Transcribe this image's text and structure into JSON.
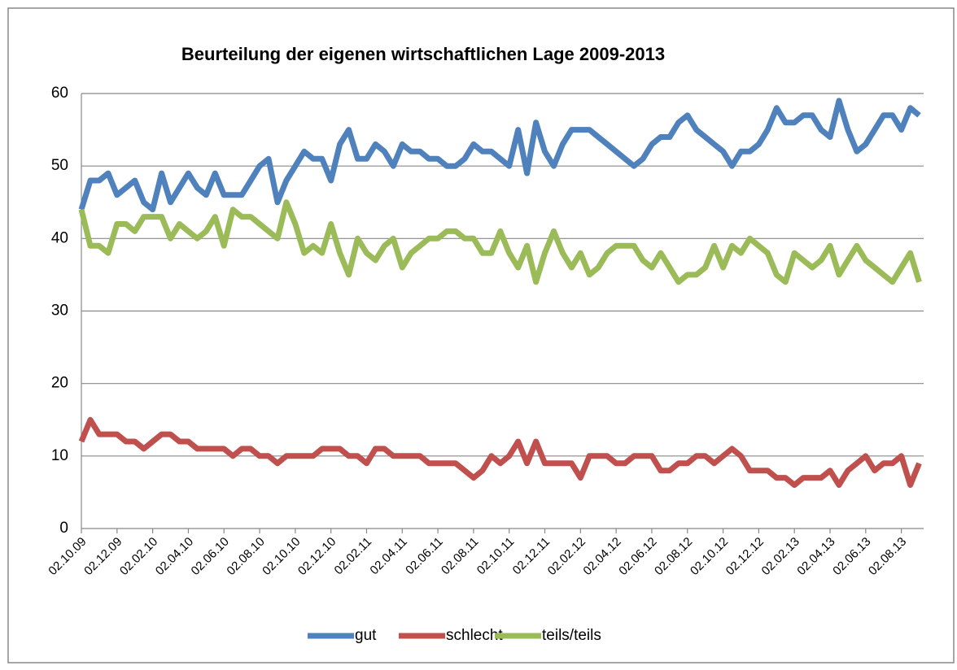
{
  "chart_data": {
    "type": "line",
    "title": "Beurteilung der eigenen wirtschaftlichen Lage  2009-2013",
    "categories": [
      "02.10.09",
      null,
      null,
      null,
      "02.12.09",
      null,
      null,
      null,
      "02.02.10",
      null,
      null,
      null,
      "02.04.10",
      null,
      null,
      null,
      "02.06.10",
      null,
      null,
      null,
      "02.08.10",
      null,
      null,
      null,
      "02.10.10",
      null,
      null,
      null,
      "02.12.10",
      null,
      null,
      null,
      "02.02.11",
      null,
      null,
      null,
      "02.04.11",
      null,
      null,
      null,
      "02.06.11",
      null,
      null,
      null,
      "02.08.11",
      null,
      null,
      null,
      "02.10.11",
      null,
      null,
      null,
      "02.12.11",
      null,
      null,
      null,
      "02.02.12",
      null,
      null,
      null,
      "02.04.12",
      null,
      null,
      null,
      "02.06.12",
      null,
      null,
      null,
      "02.08.12",
      null,
      null,
      null,
      "02.10.12",
      null,
      null,
      null,
      "02.12.12",
      null,
      null,
      null,
      "02.02.13",
      null,
      null,
      null,
      "02.04.13",
      null,
      null,
      null,
      "02.06.13",
      null,
      null,
      null,
      "02.08.13",
      null,
      null
    ],
    "series": [
      {
        "name": "gut",
        "color": "#4f81bd",
        "values": [
          44,
          48,
          48,
          49,
          46,
          47,
          48,
          45,
          44,
          49,
          45,
          47,
          49,
          47,
          46,
          49,
          46,
          46,
          46,
          48,
          50,
          51,
          45,
          48,
          50,
          52,
          51,
          51,
          48,
          53,
          55,
          51,
          51,
          53,
          52,
          50,
          53,
          52,
          52,
          51,
          51,
          50,
          50,
          51,
          53,
          52,
          52,
          51,
          50,
          55,
          49,
          56,
          52,
          50,
          53,
          55,
          55,
          55,
          54,
          53,
          52,
          51,
          50,
          51,
          53,
          54,
          54,
          56,
          57,
          55,
          54,
          53,
          52,
          50,
          52,
          52,
          53,
          55,
          58,
          56,
          56,
          57,
          57,
          55,
          54,
          59,
          55,
          52,
          53,
          55,
          57,
          57,
          55,
          58,
          57
        ]
      },
      {
        "name": "schlecht",
        "color": "#c0504d",
        "values": [
          12,
          15,
          13,
          13,
          13,
          12,
          12,
          11,
          12,
          13,
          13,
          12,
          12,
          11,
          11,
          11,
          11,
          10,
          11,
          11,
          10,
          10,
          9,
          10,
          10,
          10,
          10,
          11,
          11,
          11,
          10,
          10,
          9,
          11,
          11,
          10,
          10,
          10,
          10,
          9,
          9,
          9,
          9,
          8,
          7,
          8,
          10,
          9,
          10,
          12,
          9,
          12,
          9,
          9,
          9,
          9,
          7,
          10,
          10,
          10,
          9,
          9,
          10,
          10,
          10,
          8,
          8,
          9,
          9,
          10,
          10,
          9,
          10,
          11,
          10,
          8,
          8,
          8,
          7,
          7,
          6,
          7,
          7,
          7,
          8,
          6,
          8,
          9,
          10,
          8,
          9,
          9,
          10,
          6,
          9
        ]
      },
      {
        "name": "teils/teils",
        "color": "#9bbb59",
        "values": [
          44,
          39,
          39,
          38,
          42,
          42,
          41,
          43,
          43,
          43,
          40,
          42,
          41,
          40,
          41,
          43,
          39,
          44,
          43,
          43,
          42,
          41,
          40,
          45,
          42,
          38,
          39,
          38,
          42,
          38,
          35,
          40,
          38,
          37,
          39,
          40,
          36,
          38,
          39,
          40,
          40,
          41,
          41,
          40,
          40,
          38,
          38,
          41,
          38,
          36,
          39,
          34,
          38,
          41,
          38,
          36,
          38,
          35,
          36,
          38,
          39,
          39,
          39,
          37,
          36,
          38,
          36,
          34,
          35,
          35,
          36,
          39,
          36,
          39,
          38,
          40,
          39,
          38,
          35,
          34,
          38,
          37,
          36,
          37,
          39,
          35,
          37,
          39,
          37,
          36,
          35,
          34,
          36,
          38,
          34
        ]
      }
    ],
    "ylim": [
      0,
      60
    ],
    "yticks": [
      0,
      10,
      20,
      30,
      40,
      50,
      60
    ],
    "grid": true,
    "legend": "bottom"
  }
}
